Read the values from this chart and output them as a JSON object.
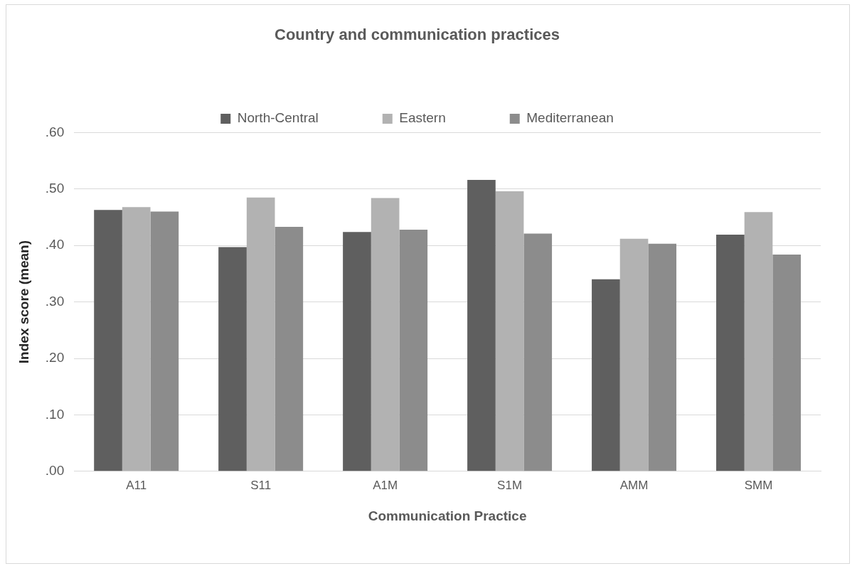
{
  "chart_data": {
    "type": "bar",
    "title": "Country and communication practices",
    "xlabel": "Communication Practice",
    "ylabel": "Index score (mean)",
    "categories": [
      "A11",
      "S11",
      "A1M",
      "S1M",
      "AMM",
      "SMM"
    ],
    "series": [
      {
        "name": "North-Central",
        "color": "#5f5f5f",
        "values": [
          0.463,
          0.397,
          0.424,
          0.516,
          0.34,
          0.419
        ]
      },
      {
        "name": "Eastern",
        "color": "#b2b2b2",
        "values": [
          0.468,
          0.485,
          0.484,
          0.496,
          0.412,
          0.459
        ]
      },
      {
        "name": "Mediterranean",
        "color": "#8c8c8c",
        "values": [
          0.46,
          0.433,
          0.428,
          0.421,
          0.403,
          0.384
        ]
      }
    ],
    "ylim": [
      0,
      0.6
    ],
    "yticks": [
      {
        "value": 0,
        "label": ".00"
      },
      {
        "value": 0.1,
        "label": ".10"
      },
      {
        "value": 0.2,
        "label": ".20"
      },
      {
        "value": 0.3,
        "label": ".30"
      },
      {
        "value": 0.4,
        "label": ".40"
      },
      {
        "value": 0.5,
        "label": ".50"
      },
      {
        "value": 0.6,
        "label": ".60"
      }
    ],
    "grid": "y",
    "legend": "top"
  }
}
